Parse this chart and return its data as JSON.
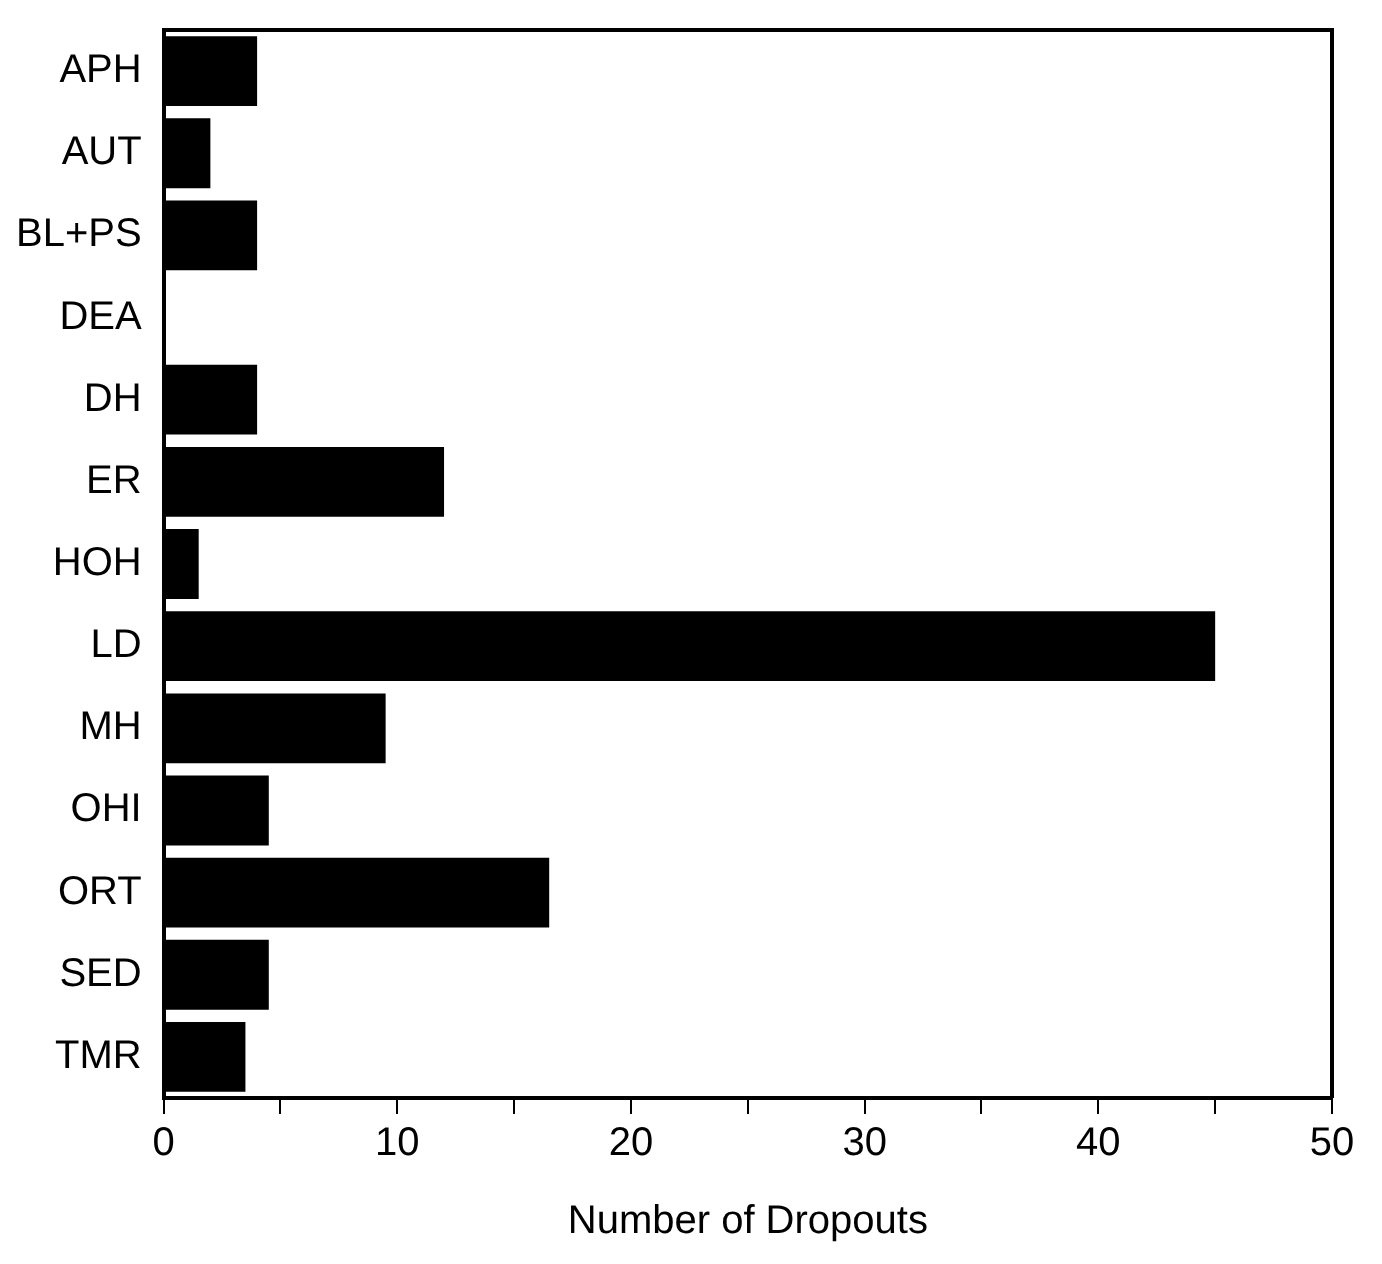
{
  "chart_data": {
    "type": "bar",
    "orientation": "horizontal",
    "xlabel": "Number of Dropouts",
    "categories": [
      "APH",
      "AUT",
      "BL+PS",
      "DEA",
      "DH",
      "ER",
      "HOH",
      "LD",
      "MH",
      "OHI",
      "ORT",
      "SED",
      "TMR"
    ],
    "values": [
      4,
      2,
      4,
      0,
      4,
      12,
      1.5,
      45,
      9.5,
      4.5,
      16.5,
      4.5,
      3.5
    ],
    "color": "#000000",
    "xlim": [
      0,
      50
    ],
    "xticks": [
      0,
      {
        "value": 5,
        "label": null
      },
      10,
      {
        "value": 15,
        "label": null
      },
      20,
      {
        "value": 25,
        "label": null
      },
      30,
      {
        "value": 35,
        "label": null
      },
      40,
      {
        "value": 45,
        "label": null
      },
      50
    ],
    "grid": false,
    "legend": false
  }
}
